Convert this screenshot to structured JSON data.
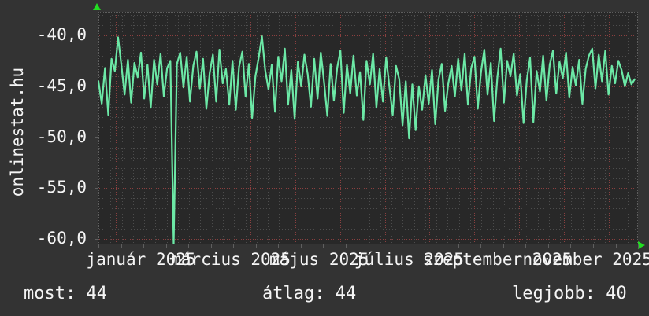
{
  "site_label": "onlinestat.hu",
  "stats": {
    "most": {
      "label": "most:",
      "value": "44"
    },
    "atlag": {
      "label": "átlag:",
      "value": "44"
    },
    "legjobb": {
      "label": "legjobb:",
      "value": "40"
    }
  },
  "colors": {
    "page_bg": "#333333",
    "plot_bg": "#282828",
    "line": "#6ce8a6",
    "axis_arrow": "#22dd22",
    "grid_minor": "#4d4d4d",
    "grid_major_red": "#8b4040",
    "text": "#f5f5f5"
  },
  "chart_data": {
    "type": "line",
    "grid": "on",
    "legend": "none",
    "xticks": [
      {
        "label": "január 2025",
        "day": 26
      },
      {
        "label": "március 2025",
        "day": 81
      },
      {
        "label": "május 2025",
        "day": 135
      },
      {
        "label": "július 2025",
        "day": 190
      },
      {
        "label": "szeptember 2025",
        "day": 244
      },
      {
        "label": "november 2025",
        "day": 299
      }
    ],
    "yticks": [
      {
        "label": "-40,0",
        "value": -40
      },
      {
        "label": "-45,0",
        "value": -45
      },
      {
        "label": "-50,0",
        "value": -50
      },
      {
        "label": "-55,0",
        "value": -55
      },
      {
        "label": "-60,0",
        "value": -60
      }
    ],
    "ylim": [
      -60.58,
      -37.8
    ],
    "xlim_days": [
      0,
      330
    ],
    "sample_step_days": 2,
    "values": [
      -44.6,
      -46.8,
      -43.3,
      -47.9,
      -42.4,
      -43.6,
      -40.3,
      -43.0,
      -45.9,
      -42.5,
      -46.7,
      -42.8,
      -44.2,
      -41.8,
      -46.3,
      -43.0,
      -47.2,
      -42.5,
      -44.9,
      -41.9,
      -46.1,
      -43.3,
      -42.6,
      -60.5,
      -42.9,
      -41.8,
      -45.2,
      -42.2,
      -46.6,
      -43.1,
      -41.7,
      -45.3,
      -42.4,
      -47.3,
      -43.8,
      -42.0,
      -46.6,
      -41.5,
      -44.8,
      -43.4,
      -46.9,
      -42.6,
      -47.4,
      -43.2,
      -41.7,
      -46.1,
      -42.9,
      -48.2,
      -44.1,
      -42.3,
      -40.2,
      -43.5,
      -45.4,
      -43.0,
      -47.6,
      -42.2,
      -44.6,
      -41.4,
      -46.9,
      -43.5,
      -48.3,
      -42.7,
      -45.1,
      -42.0,
      -43.9,
      -47.1,
      -42.4,
      -46.3,
      -41.8,
      -44.7,
      -48.0,
      -42.9,
      -46.5,
      -43.3,
      -41.6,
      -47.7,
      -43.0,
      -45.8,
      -42.1,
      -46.0,
      -43.7,
      -48.4,
      -42.6,
      -44.9,
      -41.9,
      -47.2,
      -43.4,
      -46.6,
      -42.3,
      -45.2,
      -47.9,
      -43.1,
      -44.4,
      -48.9,
      -44.6,
      -50.2,
      -44.9,
      -49.4,
      -45.1,
      -47.4,
      -44.0,
      -46.8,
      -43.5,
      -48.8,
      -44.4,
      -42.9,
      -47.5,
      -44.8,
      -43.1,
      -46.1,
      -42.4,
      -45.5,
      -41.9,
      -46.9,
      -43.3,
      -42.2,
      -47.3,
      -43.7,
      -41.5,
      -45.9,
      -42.8,
      -48.5,
      -44.2,
      -41.4,
      -46.7,
      -42.6,
      -44.1,
      -41.9,
      -46.0,
      -43.9,
      -48.7,
      -44.5,
      -42.3,
      -48.6,
      -43.6,
      -45.6,
      -42.1,
      -46.5,
      -43.0,
      -41.6,
      -45.8,
      -42.7,
      -44.3,
      -41.8,
      -46.2,
      -43.2,
      -45.0,
      -42.5,
      -46.8,
      -43.4,
      -42.1,
      -41.4,
      -45.3,
      -42.0,
      -44.6,
      -41.6,
      -45.9,
      -43.1,
      -44.8,
      -42.6,
      -43.5,
      -45.1,
      -43.8,
      -44.9,
      -44.4
    ]
  }
}
